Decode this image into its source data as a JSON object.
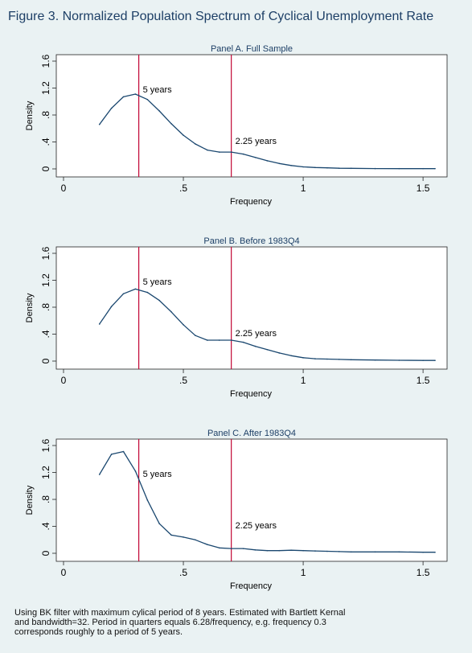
{
  "title": "Figure 3.  Normalized Population Spectrum of Cyclical Unemployment Rate",
  "footnote": [
    "Using BK filter with maximum cylical period of 8 years.  Estimated with Bartlett Kernal",
    " and bandwidth=32.  Period in quarters equals 6.28/frequency, e.g. frequency 0.3",
    " corresponds roughly to a period of 5 years."
  ],
  "colors": {
    "line": "#1a476f",
    "vline": "#c10534",
    "background": "#eaf2f3",
    "plotarea": "#ffffff",
    "title": "#1d3f66"
  },
  "chart_data": [
    {
      "type": "line",
      "title": "Panel A.  Full Sample",
      "xlabel": "Frequency",
      "ylabel": "Density",
      "xlim": [
        0,
        1.56
      ],
      "ylim": [
        0,
        1.6
      ],
      "xticks": [
        0,
        0.5,
        1,
        1.5
      ],
      "xtick_labels": [
        "0",
        ".5",
        "1",
        "1.5"
      ],
      "yticks": [
        0,
        0.4,
        0.8,
        1.2,
        1.6
      ],
      "ytick_labels": [
        "0",
        ".4",
        ".8",
        "1.2",
        "1.6"
      ],
      "grid": false,
      "vlines": [
        {
          "x": 0.314,
          "label": "5 years"
        },
        {
          "x": 0.7,
          "label": "2.25 years"
        }
      ],
      "x": [
        0.15,
        0.2,
        0.25,
        0.3,
        0.35,
        0.4,
        0.45,
        0.5,
        0.55,
        0.6,
        0.65,
        0.7,
        0.75,
        0.8,
        0.85,
        0.9,
        0.95,
        1.0,
        1.05,
        1.1,
        1.15,
        1.2,
        1.3,
        1.4,
        1.5,
        1.55
      ],
      "y": [
        0.66,
        0.9,
        1.07,
        1.11,
        1.03,
        0.86,
        0.67,
        0.5,
        0.37,
        0.28,
        0.25,
        0.25,
        0.22,
        0.17,
        0.12,
        0.08,
        0.05,
        0.03,
        0.02,
        0.015,
        0.01,
        0.008,
        0.005,
        0.004,
        0.004,
        0.004
      ]
    },
    {
      "type": "line",
      "title": "Panel B.  Before 1983Q4",
      "xlabel": "Frequency",
      "ylabel": "Density",
      "xlim": [
        0,
        1.56
      ],
      "ylim": [
        0,
        1.6
      ],
      "xticks": [
        0,
        0.5,
        1,
        1.5
      ],
      "xtick_labels": [
        "0",
        ".5",
        "1",
        "1.5"
      ],
      "yticks": [
        0,
        0.4,
        0.8,
        1.2,
        1.6
      ],
      "ytick_labels": [
        "0",
        ".4",
        ".8",
        "1.2",
        "1.6"
      ],
      "grid": false,
      "vlines": [
        {
          "x": 0.314,
          "label": "5 years"
        },
        {
          "x": 0.7,
          "label": "2.25 years"
        }
      ],
      "x": [
        0.15,
        0.2,
        0.25,
        0.3,
        0.35,
        0.4,
        0.45,
        0.5,
        0.55,
        0.6,
        0.65,
        0.7,
        0.75,
        0.8,
        0.85,
        0.9,
        0.95,
        1.0,
        1.05,
        1.1,
        1.15,
        1.2,
        1.3,
        1.4,
        1.5,
        1.55
      ],
      "y": [
        0.55,
        0.81,
        1.0,
        1.07,
        1.02,
        0.9,
        0.73,
        0.54,
        0.38,
        0.31,
        0.31,
        0.31,
        0.28,
        0.22,
        0.17,
        0.12,
        0.08,
        0.05,
        0.035,
        0.03,
        0.025,
        0.02,
        0.015,
        0.012,
        0.01,
        0.01
      ]
    },
    {
      "type": "line",
      "title": "Panel C.  After 1983Q4",
      "xlabel": "Frequency",
      "ylabel": "Density",
      "xlim": [
        0,
        1.56
      ],
      "ylim": [
        0,
        1.6
      ],
      "xticks": [
        0,
        0.5,
        1,
        1.5
      ],
      "xtick_labels": [
        "0",
        ".5",
        "1",
        "1.5"
      ],
      "yticks": [
        0,
        0.4,
        0.8,
        1.2,
        1.6
      ],
      "ytick_labels": [
        "0",
        ".4",
        ".8",
        "1.2",
        "1.6"
      ],
      "grid": false,
      "vlines": [
        {
          "x": 0.314,
          "label": "5 years"
        },
        {
          "x": 0.7,
          "label": "2.25 years"
        }
      ],
      "x": [
        0.15,
        0.2,
        0.25,
        0.3,
        0.35,
        0.4,
        0.45,
        0.5,
        0.55,
        0.6,
        0.65,
        0.7,
        0.75,
        0.8,
        0.85,
        0.9,
        0.95,
        1.0,
        1.05,
        1.1,
        1.15,
        1.2,
        1.3,
        1.4,
        1.5,
        1.55
      ],
      "y": [
        1.17,
        1.47,
        1.51,
        1.22,
        0.79,
        0.44,
        0.27,
        0.24,
        0.2,
        0.13,
        0.08,
        0.07,
        0.07,
        0.05,
        0.04,
        0.04,
        0.045,
        0.04,
        0.035,
        0.03,
        0.025,
        0.02,
        0.02,
        0.02,
        0.015,
        0.015
      ]
    }
  ]
}
